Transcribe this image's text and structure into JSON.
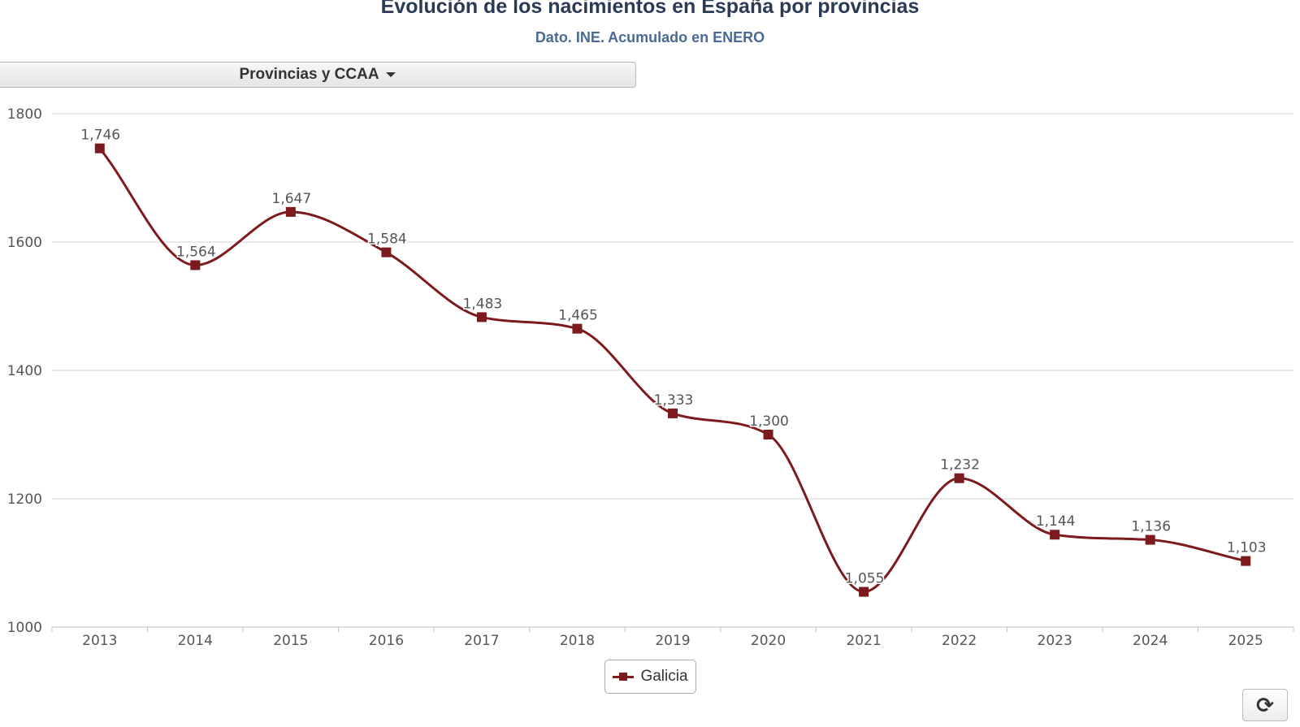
{
  "header": {
    "title": "Evolución de los nacimientos en España por provincias",
    "subtitle": "Dato. INE. Acumulado en ENERO"
  },
  "controls": {
    "province_dropdown_label": "Provincias y CCAA",
    "refresh_icon": "refresh-icon",
    "refresh_glyph": "⟳"
  },
  "colors": {
    "series": "#7d1a1d",
    "grid": "#d4d4d4",
    "axis": "#c0c0c0",
    "label": "#555555"
  },
  "chart_data": {
    "type": "line",
    "title": "Evolución de los nacimientos en España por provincias",
    "subtitle": "Dato. INE. Acumulado en ENERO",
    "xlabel": "",
    "ylabel": "",
    "categories": [
      "2013",
      "2014",
      "2015",
      "2016",
      "2017",
      "2018",
      "2019",
      "2020",
      "2021",
      "2022",
      "2023",
      "2024",
      "2025"
    ],
    "series": [
      {
        "name": "Galicia",
        "values": [
          1746,
          1564,
          1647,
          1584,
          1483,
          1465,
          1333,
          1300,
          1055,
          1232,
          1144,
          1136,
          1103
        ],
        "labels": [
          "1,746",
          "1,564",
          "1,647",
          "1,584",
          "1,483",
          "1,465",
          "1,333",
          "1,300",
          "1,055",
          "1,232",
          "1,144",
          "1,136",
          "1,103"
        ]
      }
    ],
    "ylim": [
      1000,
      1800
    ],
    "yticks": [
      1000,
      1200,
      1400,
      1600,
      1800
    ],
    "grid": true,
    "legend": "bottom-center",
    "smooth": true,
    "marker": "square"
  }
}
